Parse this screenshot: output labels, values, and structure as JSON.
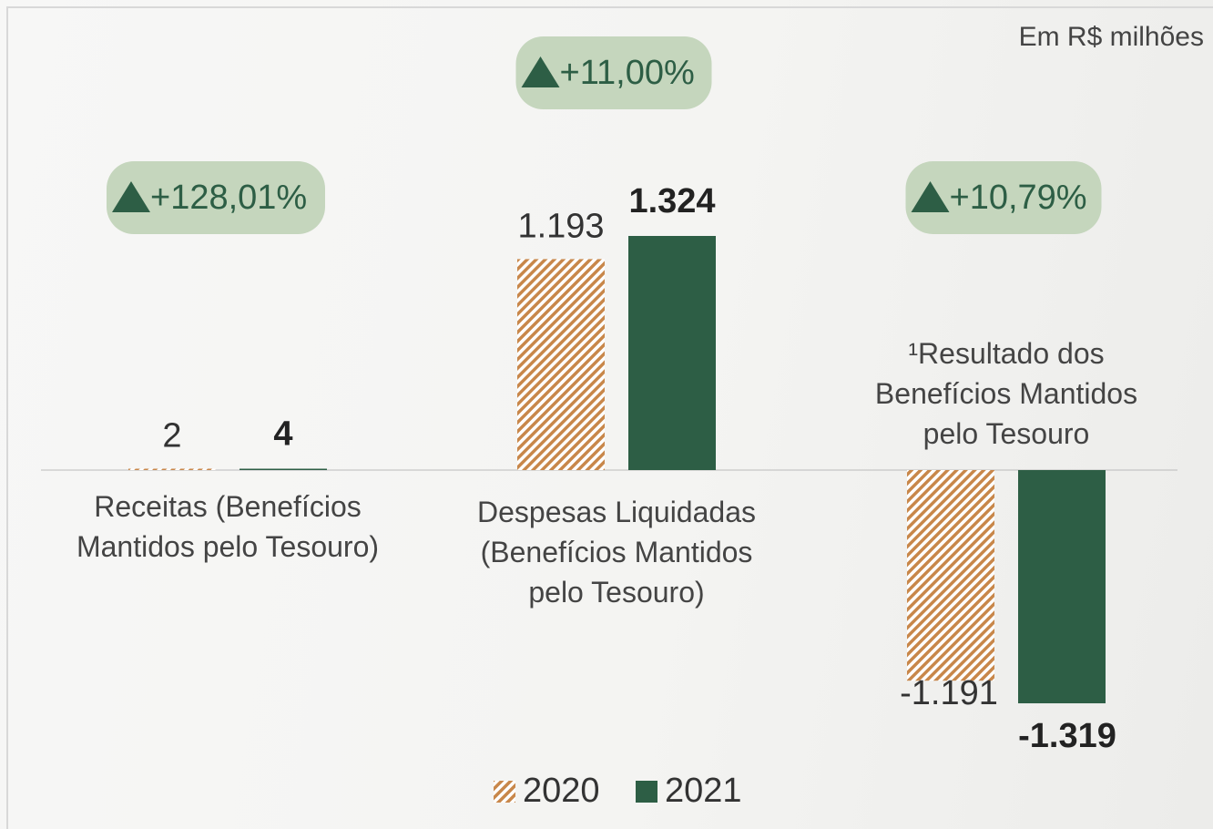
{
  "chart_data": {
    "type": "bar",
    "note": "Em R$ milhões",
    "categories": [
      "Receitas (Benefícios Mantidos pelo Tesouro)",
      "Despesas Liquidadas (Benefícios Mantidos pelo Tesouro)",
      "¹Resultado dos Benefícios Mantidos pelo Tesouro"
    ],
    "series": [
      {
        "name": "2020",
        "color": "#c8874a",
        "pattern": "hatch",
        "values": [
          2,
          1193,
          -1191
        ],
        "value_labels": [
          "2",
          "1.193",
          "-1.191"
        ]
      },
      {
        "name": "2021",
        "color": "#2d5e45",
        "pattern": "solid",
        "values": [
          4,
          1324,
          -1319
        ],
        "value_labels": [
          "4",
          "1.324",
          "-1.319"
        ]
      }
    ],
    "annotations": [
      "+128,01%",
      "+11,00%",
      "+10,79%"
    ],
    "legend": "bottom"
  }
}
